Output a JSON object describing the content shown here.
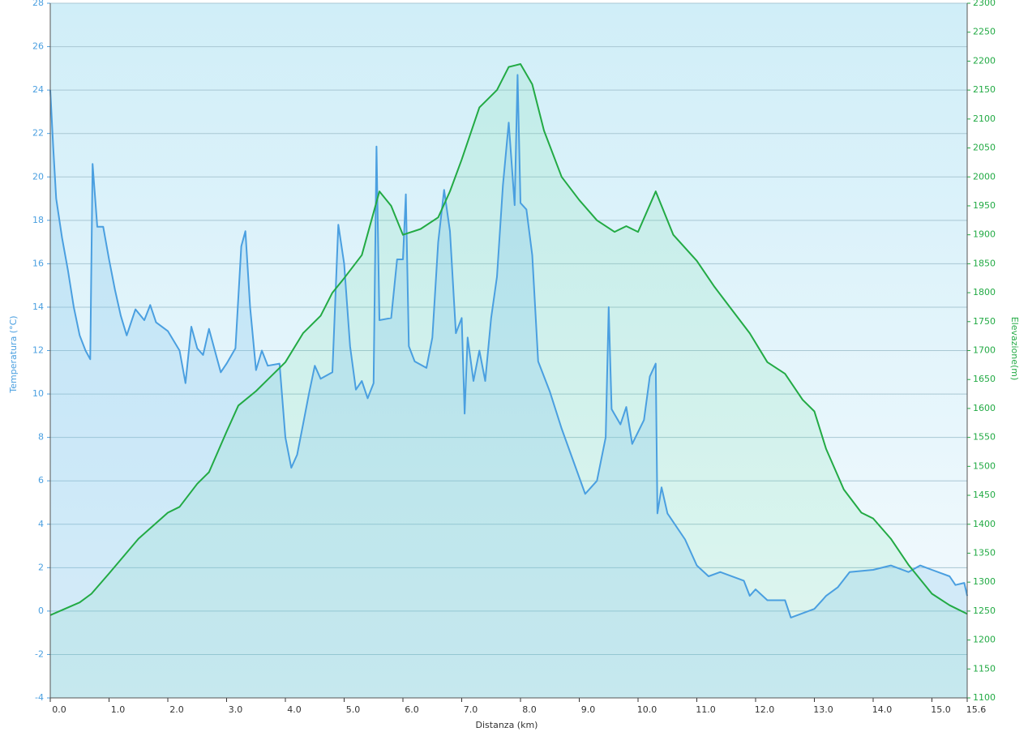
{
  "chart_data": {
    "type": "line",
    "xlabel": "Distanza  (km)",
    "ylabel": "Temperatura (°C)",
    "y2label": "Elevazione(m)",
    "xlim": [
      0,
      15.6
    ],
    "xticks": [
      {
        "value": 0,
        "label": "0.0"
      },
      {
        "value": 1,
        "label": "1.0"
      },
      {
        "value": 2,
        "label": "2.0"
      },
      {
        "value": 3,
        "label": "3.0"
      },
      {
        "value": 4,
        "label": "4.0"
      },
      {
        "value": 5,
        "label": "5.0"
      },
      {
        "value": 6,
        "label": "6.0"
      },
      {
        "value": 7,
        "label": "7.0"
      },
      {
        "value": 8,
        "label": "8.0"
      },
      {
        "value": 9,
        "label": "9.0"
      },
      {
        "value": 10,
        "label": "10.0"
      },
      {
        "value": 11,
        "label": "11.0"
      },
      {
        "value": 12,
        "label": "12.0"
      },
      {
        "value": 13,
        "label": "13.0"
      },
      {
        "value": 14,
        "label": "14.0"
      },
      {
        "value": 15,
        "label": "15.0"
      },
      15.6
    ],
    "ylim": [
      -4,
      28
    ],
    "yticks": [
      -4,
      -2,
      0,
      2,
      4,
      6,
      8,
      10,
      12,
      14,
      16,
      18,
      20,
      22,
      24,
      26,
      28
    ],
    "y2lim": [
      1100,
      2300
    ],
    "y2ticks": [
      1100,
      1150,
      1200,
      1250,
      1300,
      1350,
      1400,
      1450,
      1500,
      1550,
      1600,
      1650,
      1700,
      1750,
      1800,
      1850,
      1900,
      1950,
      2000,
      2050,
      2100,
      2150,
      2200,
      2250,
      2300
    ],
    "grid": true,
    "series": [
      {
        "color": "#22aa44",
        "axis": "y2",
        "x": [
          0,
          0.5,
          0.7,
          1.0,
          1.5,
          2.0,
          2.2,
          2.5,
          2.7,
          3.0,
          3.2,
          3.5,
          3.7,
          4.0,
          4.3,
          4.6,
          4.8,
          5.0,
          5.3,
          5.6,
          5.8,
          6.0,
          6.3,
          6.6,
          6.8,
          7.0,
          7.3,
          7.6,
          7.8,
          8.0,
          8.2,
          8.4,
          8.7,
          9.0,
          9.3,
          9.6,
          9.8,
          10.0,
          10.3,
          10.6,
          11.0,
          11.3,
          11.6,
          11.9,
          12.2,
          12.5,
          12.8,
          13.0,
          13.2,
          13.5,
          13.8,
          14.0,
          14.3,
          14.6,
          15.0,
          15.3,
          15.6
        ],
        "values": [
          1243,
          1265,
          1280,
          1315,
          1375,
          1420,
          1430,
          1470,
          1490,
          1560,
          1605,
          1630,
          1650,
          1680,
          1730,
          1760,
          1800,
          1825,
          1865,
          1975,
          1950,
          1900,
          1910,
          1930,
          1975,
          2030,
          2120,
          2150,
          2190,
          2195,
          2160,
          2080,
          2000,
          1960,
          1925,
          1905,
          1915,
          1905,
          1975,
          1900,
          1855,
          1810,
          1770,
          1730,
          1680,
          1660,
          1615,
          1595,
          1530,
          1460,
          1420,
          1410,
          1375,
          1330,
          1280,
          1260,
          1245
        ]
      },
      {
        "color": "#4a9fe0",
        "axis": "y",
        "x": [
          0,
          0.05,
          0.1,
          0.2,
          0.3,
          0.4,
          0.5,
          0.6,
          0.68,
          0.72,
          0.75,
          0.8,
          0.9,
          1.0,
          1.1,
          1.2,
          1.3,
          1.45,
          1.6,
          1.7,
          1.8,
          2.0,
          2.2,
          2.3,
          2.4,
          2.5,
          2.6,
          2.7,
          2.8,
          2.9,
          3.0,
          3.15,
          3.25,
          3.32,
          3.4,
          3.5,
          3.6,
          3.7,
          3.9,
          4.0,
          4.1,
          4.2,
          4.3,
          4.4,
          4.5,
          4.6,
          4.8,
          4.9,
          5.0,
          5.1,
          5.2,
          5.3,
          5.4,
          5.5,
          5.55,
          5.6,
          5.8,
          5.9,
          6.0,
          6.05,
          6.1,
          6.2,
          6.4,
          6.5,
          6.6,
          6.7,
          6.8,
          6.9,
          7.0,
          7.05,
          7.1,
          7.2,
          7.3,
          7.4,
          7.5,
          7.6,
          7.7,
          7.8,
          7.9,
          7.95,
          8.0,
          8.1,
          8.2,
          8.3,
          8.5,
          8.7,
          8.9,
          9.1,
          9.3,
          9.45,
          9.5,
          9.55,
          9.7,
          9.8,
          9.9,
          10.1,
          10.2,
          10.3,
          10.33,
          10.4,
          10.5,
          10.8,
          11.0,
          11.2,
          11.4,
          11.8,
          11.9,
          12.0,
          12.2,
          12.5,
          12.6,
          13.0,
          13.2,
          13.4,
          13.6,
          14.0,
          14.3,
          14.6,
          14.8,
          15.0,
          15.3,
          15.4,
          15.55,
          15.6
        ],
        "values": [
          24,
          21.4,
          19,
          17.2,
          15.7,
          14,
          12.7,
          12,
          11.6,
          20.6,
          19.5,
          17.7,
          17.7,
          16.2,
          14.8,
          13.6,
          12.7,
          13.9,
          13.4,
          14.1,
          13.3,
          12.9,
          12,
          10.5,
          13.1,
          12.1,
          11.8,
          13,
          12,
          11,
          11.4,
          12.1,
          16.8,
          17.5,
          14,
          11.1,
          12,
          11.3,
          11.4,
          8,
          6.6,
          7.2,
          8.6,
          10,
          11.3,
          10.7,
          11,
          17.8,
          16,
          12.2,
          10.2,
          10.6,
          9.8,
          10.5,
          21.4,
          13.4,
          13.5,
          16.2,
          16.2,
          19.2,
          12.2,
          11.5,
          11.2,
          12.6,
          17,
          19.4,
          17.5,
          12.8,
          13.5,
          9.1,
          12.6,
          10.6,
          12,
          10.6,
          13.5,
          15.4,
          19.6,
          22.5,
          18.7,
          24.7,
          18.8,
          18.5,
          16.4,
          11.5,
          10.1,
          8.4,
          6.9,
          5.4,
          6,
          8,
          14,
          9.3,
          8.6,
          9.4,
          7.7,
          8.8,
          10.8,
          11.4,
          4.5,
          5.7,
          4.5,
          3.3,
          2.1,
          1.6,
          1.8,
          1.4,
          0.7,
          1,
          0.5,
          0.5,
          -0.3,
          0.1,
          0.7,
          1.1,
          1.8,
          1.9,
          2.1,
          1.8,
          2.1,
          1.9,
          1.6,
          1.2,
          1.3,
          0.7
        ]
      }
    ]
  }
}
